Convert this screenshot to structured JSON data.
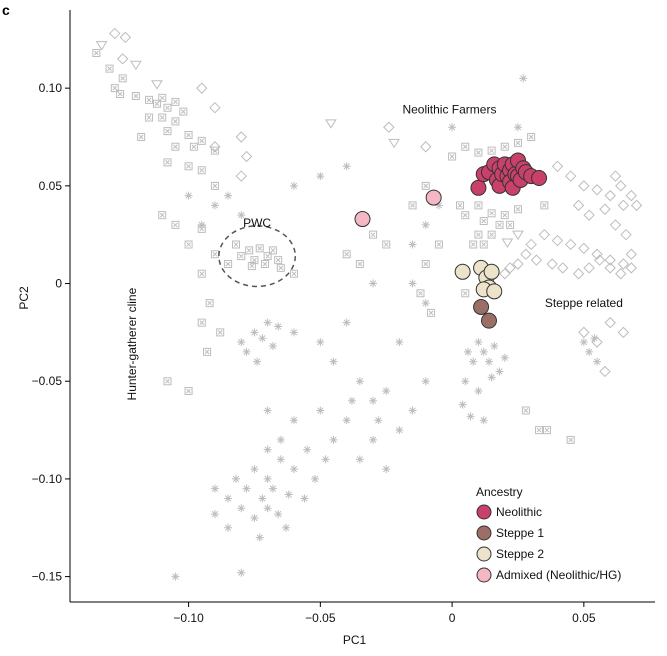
{
  "panel_label": "c",
  "chart_data": {
    "type": "scatter",
    "xlabel": "PC1",
    "ylabel": "PC2",
    "xlim": [
      -0.145,
      0.077
    ],
    "ylim": [
      -0.163,
      0.14
    ],
    "xticks": [
      -0.1,
      -0.05,
      0,
      0.05
    ],
    "xtick_labels": [
      "−0.10",
      "−0.05",
      "0",
      "0.05"
    ],
    "yticks": [
      0.1,
      0.05,
      0,
      -0.05,
      -0.1,
      -0.15
    ],
    "ytick_labels": [
      "0.10",
      "0.05",
      "0",
      "−0.05",
      "−0.10",
      "−0.15"
    ],
    "grid": false,
    "colors": {
      "reference": "#bdbdbd",
      "outline": "#333333",
      "neolithic": "#c9406b",
      "steppe1": "#9b6f66",
      "steppe2": "#ede3cb",
      "admixed": "#f6b7c5"
    },
    "annotations": [
      {
        "text": "Neolithic Farmers",
        "x": -0.001,
        "y": 0.087
      },
      {
        "text": "PWC",
        "x": -0.074,
        "y": 0.029
      },
      {
        "text": "Steppe related",
        "x": 0.05,
        "y": -0.012
      },
      {
        "text": "Hunter-gatherer cline",
        "x": -0.12,
        "y": -0.031,
        "rotate": -90
      }
    ],
    "pwc_ellipse": {
      "cx": -0.074,
      "cy": 0.014,
      "rx": 0.0145,
      "ry": 0.0155
    },
    "legend": {
      "title": "Ancestry",
      "placement": "bottom-right",
      "items": [
        {
          "label": "Neolithic",
          "color": "#c9406b"
        },
        {
          "label": "Steppe 1",
          "color": "#9b6f66"
        },
        {
          "label": "Steppe 2",
          "color": "#ede3cb"
        },
        {
          "label": "Admixed (Neolithic/HG)",
          "color": "#f6b7c5"
        }
      ]
    },
    "series": [
      {
        "name": "Neolithic",
        "color": "#c9406b",
        "points": [
          [
            0.01,
            0.049
          ],
          [
            0.012,
            0.056
          ],
          [
            0.014,
            0.057
          ],
          [
            0.016,
            0.061
          ],
          [
            0.017,
            0.053
          ],
          [
            0.018,
            0.05
          ],
          [
            0.018,
            0.059
          ],
          [
            0.019,
            0.056
          ],
          [
            0.02,
            0.061
          ],
          [
            0.021,
            0.055
          ],
          [
            0.022,
            0.058
          ],
          [
            0.022,
            0.052
          ],
          [
            0.023,
            0.061
          ],
          [
            0.023,
            0.049
          ],
          [
            0.024,
            0.056
          ],
          [
            0.025,
            0.055
          ],
          [
            0.025,
            0.063
          ],
          [
            0.026,
            0.053
          ],
          [
            0.027,
            0.059
          ],
          [
            0.028,
            0.057
          ],
          [
            0.03,
            0.055
          ],
          [
            0.033,
            0.054
          ]
        ]
      },
      {
        "name": "Steppe 1",
        "color": "#9b6f66",
        "points": [
          [
            0.011,
            -0.012
          ],
          [
            0.014,
            -0.019
          ]
        ]
      },
      {
        "name": "Steppe 2",
        "color": "#ede3cb",
        "points": [
          [
            0.004,
            0.006
          ],
          [
            0.011,
            0.008
          ],
          [
            0.013,
            0.003
          ],
          [
            0.014,
            -0.002
          ],
          [
            0.015,
            0.006
          ],
          [
            0.012,
            -0.003
          ],
          [
            0.016,
            -0.004
          ]
        ]
      },
      {
        "name": "Admixed (Neolithic/HG)",
        "color": "#f6b7c5",
        "points": [
          [
            -0.034,
            0.033
          ],
          [
            -0.007,
            0.044
          ]
        ]
      }
    ],
    "reference_points": {
      "asterisk": [
        [
          -0.09,
          0.04
        ],
        [
          -0.085,
          0.045
        ],
        [
          -0.1,
          0.045
        ],
        [
          -0.06,
          0.05
        ],
        [
          -0.05,
          0.055
        ],
        [
          -0.04,
          0.06
        ],
        [
          -0.08,
          0.035
        ],
        [
          -0.095,
          0.03
        ],
        [
          -0.07,
          -0.02
        ],
        [
          -0.075,
          -0.025
        ],
        [
          -0.08,
          -0.03
        ],
        [
          -0.078,
          -0.035
        ],
        [
          -0.072,
          -0.028
        ],
        [
          -0.068,
          -0.032
        ],
        [
          -0.066,
          -0.022
        ],
        [
          -0.074,
          -0.04
        ],
        [
          -0.06,
          -0.025
        ],
        [
          -0.05,
          -0.03
        ],
        [
          -0.045,
          -0.04
        ],
        [
          -0.04,
          -0.02
        ],
        [
          -0.035,
          -0.05
        ],
        [
          -0.03,
          -0.06
        ],
        [
          -0.025,
          -0.055
        ],
        [
          -0.04,
          -0.07
        ],
        [
          -0.05,
          -0.065
        ],
        [
          -0.06,
          -0.07
        ],
        [
          -0.07,
          -0.065
        ],
        [
          -0.065,
          -0.08
        ],
        [
          -0.055,
          -0.085
        ],
        [
          -0.045,
          -0.08
        ],
        [
          -0.035,
          -0.09
        ],
        [
          -0.025,
          -0.095
        ],
        [
          -0.02,
          -0.075
        ],
        [
          -0.03,
          -0.08
        ],
        [
          -0.015,
          -0.065
        ],
        [
          -0.01,
          -0.05
        ],
        [
          -0.02,
          -0.03
        ],
        [
          -0.03,
          0.0
        ],
        [
          -0.028,
          -0.07
        ],
        [
          -0.038,
          -0.06
        ],
        [
          -0.09,
          -0.105
        ],
        [
          -0.085,
          -0.11
        ],
        [
          -0.082,
          -0.1
        ],
        [
          -0.078,
          -0.105
        ],
        [
          -0.075,
          -0.095
        ],
        [
          -0.072,
          -0.11
        ],
        [
          -0.07,
          -0.1
        ],
        [
          -0.068,
          -0.105
        ],
        [
          -0.065,
          -0.09
        ],
        [
          -0.062,
          -0.108
        ],
        [
          -0.08,
          -0.115
        ],
        [
          -0.075,
          -0.12
        ],
        [
          -0.07,
          -0.115
        ],
        [
          -0.066,
          -0.118
        ],
        [
          -0.06,
          -0.095
        ],
        [
          -0.056,
          -0.11
        ],
        [
          -0.052,
          -0.1
        ],
        [
          -0.048,
          -0.09
        ],
        [
          -0.085,
          -0.125
        ],
        [
          -0.073,
          -0.13
        ],
        [
          -0.09,
          -0.118
        ],
        [
          -0.063,
          -0.125
        ],
        [
          -0.105,
          -0.15
        ],
        [
          -0.08,
          -0.148
        ],
        [
          -0.07,
          -0.085
        ],
        [
          0.01,
          -0.03
        ],
        [
          0.012,
          -0.035
        ],
        [
          0.014,
          -0.04
        ],
        [
          0.016,
          -0.032
        ],
        [
          0.018,
          -0.045
        ],
        [
          0.008,
          -0.04
        ],
        [
          0.006,
          -0.035
        ],
        [
          0.02,
          -0.038
        ],
        [
          0.015,
          -0.048
        ],
        [
          0.005,
          -0.05
        ],
        [
          0.004,
          -0.062
        ],
        [
          0.007,
          -0.068
        ],
        [
          0.01,
          -0.055
        ],
        [
          0.012,
          -0.07
        ],
        [
          0.05,
          -0.03
        ],
        [
          0.052,
          -0.035
        ],
        [
          0.054,
          -0.028
        ],
        [
          0.055,
          -0.04
        ],
        [
          -0.015,
          0.02
        ],
        [
          -0.01,
          0.03
        ],
        [
          -0.005,
          0.04
        ],
        [
          -0.015,
          0.0
        ],
        [
          0.0,
          0.08
        ],
        [
          0.025,
          0.08
        ],
        [
          -0.01,
          -0.01
        ],
        [
          0.027,
          0.105
        ]
      ],
      "square": [
        [
          -0.135,
          0.118
        ],
        [
          -0.13,
          0.11
        ],
        [
          -0.125,
          0.105
        ],
        [
          -0.128,
          0.1
        ],
        [
          -0.126,
          0.097
        ],
        [
          -0.12,
          0.096
        ],
        [
          -0.115,
          0.094
        ],
        [
          -0.112,
          0.092
        ],
        [
          -0.11,
          0.095
        ],
        [
          -0.108,
          0.09
        ],
        [
          -0.105,
          0.093
        ],
        [
          -0.102,
          0.088
        ],
        [
          -0.115,
          0.085
        ],
        [
          -0.11,
          0.085
        ],
        [
          -0.105,
          0.083
        ],
        [
          -0.108,
          0.078
        ],
        [
          -0.1,
          0.076
        ],
        [
          -0.095,
          0.073
        ],
        [
          -0.098,
          0.07
        ],
        [
          -0.09,
          0.068
        ],
        [
          -0.118,
          0.075
        ],
        [
          -0.105,
          0.07
        ],
        [
          -0.108,
          0.062
        ],
        [
          -0.1,
          0.06
        ],
        [
          -0.095,
          0.058
        ],
        [
          -0.09,
          0.05
        ],
        [
          -0.11,
          0.035
        ],
        [
          -0.105,
          0.03
        ],
        [
          -0.095,
          0.028
        ],
        [
          -0.1,
          0.02
        ],
        [
          -0.09,
          0.015
        ],
        [
          -0.095,
          0.005
        ],
        [
          -0.085,
          0.01
        ],
        [
          -0.092,
          -0.01
        ],
        [
          -0.095,
          -0.02
        ],
        [
          -0.088,
          -0.025
        ],
        [
          -0.093,
          -0.035
        ],
        [
          -0.108,
          -0.05
        ],
        [
          -0.1,
          -0.055
        ],
        [
          -0.082,
          0.02
        ],
        [
          -0.08,
          0.014
        ],
        [
          -0.077,
          0.017
        ],
        [
          -0.075,
          0.012
        ],
        [
          -0.073,
          0.018
        ],
        [
          -0.07,
          0.014
        ],
        [
          -0.068,
          0.017
        ],
        [
          -0.066,
          0.012
        ],
        [
          -0.076,
          0.009
        ],
        [
          -0.071,
          0.01
        ],
        [
          -0.065,
          0.008
        ],
        [
          -0.06,
          0.005
        ],
        [
          -0.04,
          0.015
        ],
        [
          -0.035,
          0.01
        ],
        [
          -0.03,
          0.025
        ],
        [
          -0.025,
          0.02
        ],
        [
          -0.01,
          0.05
        ],
        [
          -0.015,
          0.04
        ],
        [
          0.0,
          0.065
        ],
        [
          0.005,
          0.07
        ],
        [
          0.01,
          0.067
        ],
        [
          0.015,
          0.068
        ],
        [
          0.02,
          0.07
        ],
        [
          0.025,
          0.072
        ],
        [
          0.03,
          0.075
        ],
        [
          0.003,
          0.04
        ],
        [
          0.005,
          0.035
        ],
        [
          0.01,
          0.04
        ],
        [
          0.012,
          0.032
        ],
        [
          0.015,
          0.036
        ],
        [
          0.018,
          0.03
        ],
        [
          0.02,
          0.035
        ],
        [
          0.022,
          0.03
        ],
        [
          0.025,
          0.038
        ],
        [
          0.01,
          0.025
        ],
        [
          0.008,
          0.02
        ],
        [
          0.012,
          0.02
        ],
        [
          0.015,
          0.025
        ],
        [
          -0.01,
          0.01
        ],
        [
          -0.005,
          0.02
        ],
        [
          -0.012,
          -0.005
        ],
        [
          -0.008,
          -0.015
        ],
        [
          0.005,
          -0.005
        ],
        [
          0.035,
          0.04
        ],
        [
          0.036,
          -0.075
        ],
        [
          0.033,
          -0.075
        ],
        [
          0.045,
          -0.08
        ],
        [
          0.028,
          -0.065
        ]
      ],
      "diamond": [
        [
          -0.128,
          0.128
        ],
        [
          -0.124,
          0.126
        ],
        [
          -0.095,
          0.1
        ],
        [
          -0.09,
          0.09
        ],
        [
          -0.08,
          0.075
        ],
        [
          -0.078,
          0.065
        ],
        [
          -0.08,
          0.055
        ],
        [
          -0.09,
          0.07
        ],
        [
          -0.125,
          0.115
        ],
        [
          -0.024,
          0.08
        ],
        [
          -0.01,
          0.07
        ],
        [
          0.04,
          0.06
        ],
        [
          0.045,
          0.055
        ],
        [
          0.05,
          0.05
        ],
        [
          0.055,
          0.048
        ],
        [
          0.06,
          0.045
        ],
        [
          0.065,
          0.04
        ],
        [
          0.048,
          0.04
        ],
        [
          0.052,
          0.035
        ],
        [
          0.058,
          0.038
        ],
        [
          0.062,
          0.03
        ],
        [
          0.066,
          0.025
        ],
        [
          0.068,
          0.015
        ],
        [
          0.065,
          0.01
        ],
        [
          0.06,
          0.012
        ],
        [
          0.055,
          0.015
        ],
        [
          0.05,
          0.018
        ],
        [
          0.045,
          0.02
        ],
        [
          0.04,
          0.022
        ],
        [
          0.035,
          0.025
        ],
        [
          0.03,
          0.02
        ],
        [
          0.028,
          0.015
        ],
        [
          0.032,
          0.012
        ],
        [
          0.038,
          0.01
        ],
        [
          0.042,
          0.008
        ],
        [
          0.048,
          0.005
        ],
        [
          0.052,
          0.008
        ],
        [
          0.056,
          0.012
        ],
        [
          0.06,
          0.008
        ],
        [
          0.064,
          0.005
        ],
        [
          0.068,
          0.008
        ],
        [
          0.025,
          0.01
        ],
        [
          0.022,
          0.008
        ],
        [
          0.02,
          0.005
        ],
        [
          0.055,
          -0.03
        ],
        [
          0.05,
          -0.025
        ],
        [
          0.06,
          -0.02
        ],
        [
          0.065,
          -0.025
        ],
        [
          0.058,
          -0.045
        ],
        [
          0.062,
          0.055
        ],
        [
          0.064,
          0.05
        ],
        [
          0.068,
          0.045
        ],
        [
          0.07,
          0.04
        ]
      ],
      "triangle": [
        [
          -0.133,
          0.122
        ],
        [
          -0.12,
          0.112
        ],
        [
          -0.112,
          0.102
        ],
        [
          -0.046,
          0.082
        ],
        [
          -0.022,
          0.072
        ],
        [
          0.021,
          0.021
        ],
        [
          0.025,
          0.025
        ]
      ]
    }
  }
}
